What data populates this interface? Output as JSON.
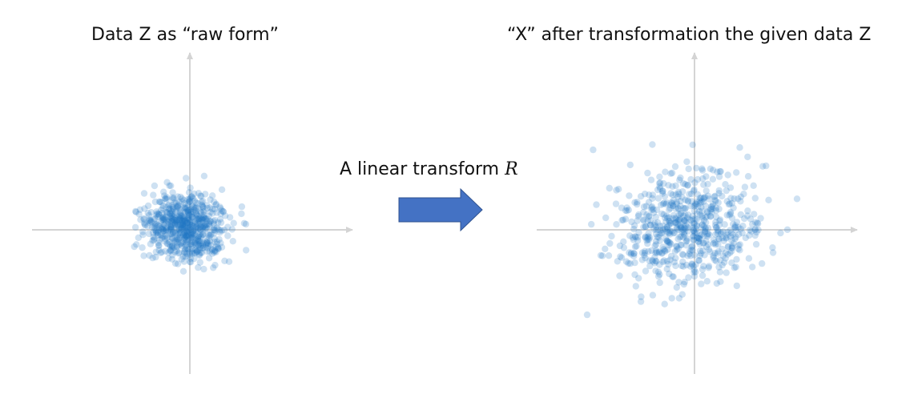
{
  "left_panel": {
    "title": "Data Z as “raw form”"
  },
  "right_panel": {
    "title": "“X” after transformation the given data Z"
  },
  "transform": {
    "label": "A linear transform",
    "symbol": "R"
  },
  "colors": {
    "axis": "#d4d4d4",
    "point": "#1f77c4",
    "arrow_fill": "#4472c4",
    "arrow_stroke": "#2f528f"
  }
}
